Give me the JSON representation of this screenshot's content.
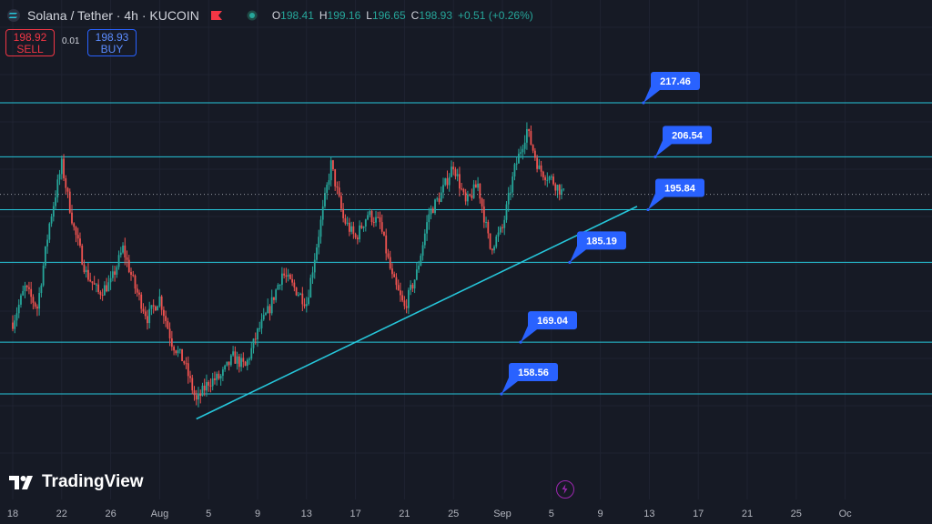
{
  "header": {
    "symbol": "Solana",
    "pair": "Solana / Tether · 4h · KUCOIN",
    "ohlc": [
      {
        "k": "O",
        "v": "198.41"
      },
      {
        "k": "H",
        "v": "199.16"
      },
      {
        "k": "L",
        "v": "196.65"
      },
      {
        "k": "C",
        "v": "198.93"
      },
      {
        "k": "",
        "v": "+0.51 (+0.26%)"
      }
    ]
  },
  "trade": {
    "sell_price": "198.92",
    "sell_label": "SELL",
    "spread": "0.01",
    "buy_price": "198.93",
    "buy_label": "BUY"
  },
  "branding": {
    "logo_text": "TradingView"
  },
  "colors": {
    "background": "#161a25",
    "up": "#26a69a",
    "down": "#ef5350",
    "level_line": "#26c6da",
    "label_bg": "#2962ff"
  },
  "chart_data": {
    "type": "candlestick",
    "y_range": [
      150,
      220
    ],
    "levels": [
      217.46,
      206.54,
      195.84,
      185.19,
      169.04,
      158.56
    ],
    "level_labels": [
      "217.46",
      "206.54",
      "195.84",
      "185.19",
      "169.04",
      "158.56"
    ],
    "x_ticks": [
      "18",
      "22",
      "26",
      "Aug",
      "5",
      "9",
      "13",
      "17",
      "21",
      "25",
      "Sep",
      "5",
      "9",
      "13",
      "17",
      "21",
      "25",
      "Oc"
    ],
    "trendline": {
      "start": [
        "Aug 2",
        153.5
      ],
      "end": [
        "Sep 7",
        196.5
      ]
    },
    "current_price": 198.93,
    "close_path": [
      [
        "Jul 18",
        173
      ],
      [
        "Jul 19",
        180
      ],
      [
        "Jul 20",
        176
      ],
      [
        "Jul 21",
        193
      ],
      [
        "Jul 22",
        205
      ],
      [
        "Jul 23",
        192
      ],
      [
        "Jul 24",
        183
      ],
      [
        "Jul 25",
        179
      ],
      [
        "Jul 26",
        181
      ],
      [
        "Jul 27",
        188
      ],
      [
        "Jul 28",
        180
      ],
      [
        "Jul 29",
        174
      ],
      [
        "Jul 30",
        178
      ],
      [
        "Jul 31",
        169
      ],
      [
        "Aug 1",
        165
      ],
      [
        "Aug 2",
        157
      ],
      [
        "Aug 3",
        161
      ],
      [
        "Aug 4",
        162
      ],
      [
        "Aug 5",
        166
      ],
      [
        "Aug 6",
        164
      ],
      [
        "Aug 7",
        171
      ],
      [
        "Aug 8",
        176
      ],
      [
        "Aug 9",
        183
      ],
      [
        "Aug 10",
        180
      ],
      [
        "Aug 11",
        177
      ],
      [
        "Aug 12",
        191
      ],
      [
        "Aug 13",
        205
      ],
      [
        "Aug 14",
        194
      ],
      [
        "Aug 15",
        190
      ],
      [
        "Aug 16",
        195
      ],
      [
        "Aug 17",
        193
      ],
      [
        "Aug 18",
        182
      ],
      [
        "Aug 19",
        176
      ],
      [
        "Aug 20",
        183
      ],
      [
        "Aug 21",
        195
      ],
      [
        "Aug 22",
        199
      ],
      [
        "Aug 23",
        205
      ],
      [
        "Aug 24",
        197
      ],
      [
        "Aug 25",
        201
      ],
      [
        "Aug 26",
        188
      ],
      [
        "Aug 27",
        192
      ],
      [
        "Aug 28",
        204
      ],
      [
        "Aug 29",
        212
      ],
      [
        "Aug 30",
        204
      ],
      [
        "Aug 31",
        202
      ],
      [
        "Sep 1",
        198.93
      ]
    ]
  }
}
